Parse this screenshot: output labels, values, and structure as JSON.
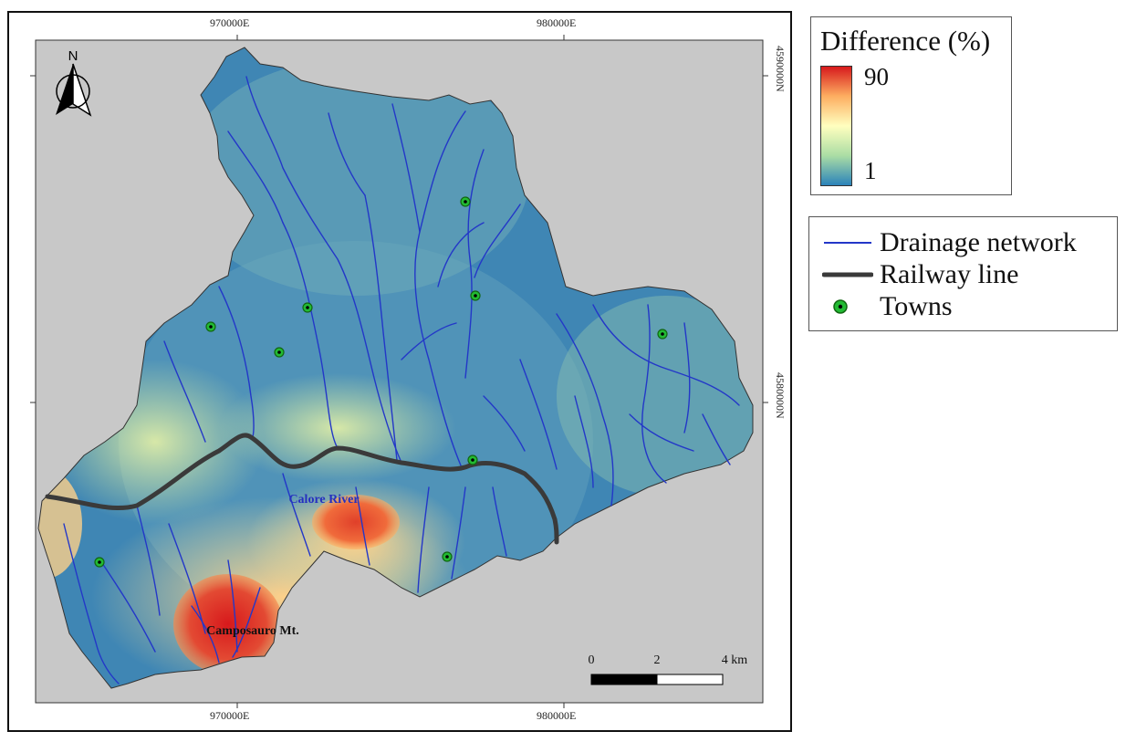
{
  "map": {
    "grid_labels": {
      "easting_top": [
        "970000E",
        "980000E"
      ],
      "easting_bottom": [
        "970000E",
        "980000E"
      ],
      "northing_right": [
        "4590000N",
        "4580000N"
      ]
    },
    "north_arrow_letter": "N",
    "annotations": {
      "river": "Calore River",
      "mountain": "Camposauro Mt."
    },
    "scale_bar": {
      "ticks": [
        "0",
        "2",
        "4 km"
      ]
    },
    "colors": {
      "background": "#c8c8c8",
      "drainage": "#2337c8",
      "railway": "#3a3a3a",
      "town_fill": "#22bb33"
    },
    "town_count": 9
  },
  "legend_difference": {
    "title": "Difference (%)",
    "max_label": "90",
    "min_label": "1",
    "colors": [
      "#d7191c",
      "#fdae61",
      "#ffffbf",
      "#abdda4",
      "#2b83ba"
    ]
  },
  "legend_features": {
    "items": [
      {
        "label": "Drainage network",
        "symbol": "blue-line"
      },
      {
        "label": "Railway line",
        "symbol": "thick-gray-line"
      },
      {
        "label": "Towns",
        "symbol": "green-dot"
      }
    ]
  }
}
